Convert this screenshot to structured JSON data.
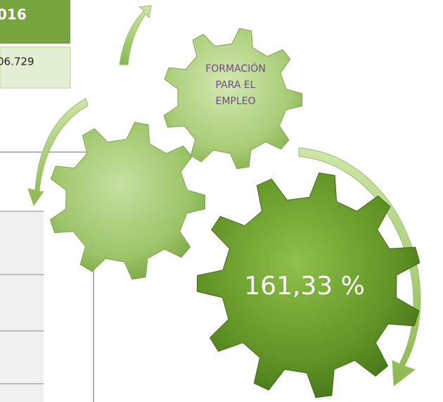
{
  "header": {
    "year": "016",
    "amount": "06.729"
  },
  "gears": {
    "top_label": [
      "FORMACIÓN",
      "PARA EL",
      "EMPLEO"
    ],
    "big_label": "161,33 %"
  }
}
